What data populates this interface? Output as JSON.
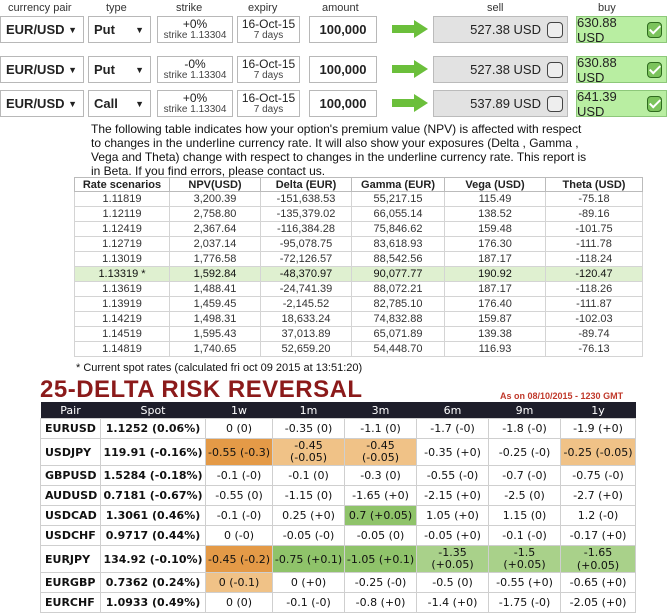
{
  "headers": {
    "pair": "currency pair",
    "type": "type",
    "strike": "strike",
    "expiry": "expiry",
    "amount": "amount",
    "sell": "sell",
    "buy": "buy"
  },
  "tickets": [
    {
      "pair": "EUR/USD",
      "type": "Put",
      "pct": "+0%",
      "strike": "strike 1.13304",
      "date": "16-Oct-15",
      "days": "7 days",
      "amount": "100,000",
      "sell": "527.38 USD",
      "buy": "630.88 USD"
    },
    {
      "pair": "EUR/USD",
      "type": "Put",
      "pct": "-0%",
      "strike": "strike 1.13304",
      "date": "16-Oct-15",
      "days": "7 days",
      "amount": "100,000",
      "sell": "527.38 USD",
      "buy": "630.88 USD"
    },
    {
      "pair": "EUR/USD",
      "type": "Call",
      "pct": "+0%",
      "strike": "strike 1.13304",
      "date": "16-Oct-15",
      "days": "7 days",
      "amount": "100,000",
      "sell": "537.89 USD",
      "buy": "641.39 USD"
    }
  ],
  "note": "The following table indicates how your option's premium value (NPV) is affected with respect to changes in the underline currency rate. It will also show your exposures (Delta , Gamma , Vega and Theta) change with respect to changes in the underline currency rate. This report is in Beta. If you find errors, please contact us.",
  "scenario_headers": [
    "Rate scenarios",
    "NPV(USD)",
    "Delta (EUR)",
    "Gamma (EUR)",
    "Vega (USD)",
    "Theta (USD)"
  ],
  "scenarios": [
    [
      "1.11819",
      "3,200.39",
      "-151,638.53",
      "55,217.15",
      "115.49",
      "-75.18"
    ],
    [
      "1.12119",
      "2,758.80",
      "-135,379.02",
      "66,055.14",
      "138.52",
      "-89.16"
    ],
    [
      "1.12419",
      "2,367.64",
      "-116,384.28",
      "75,846.62",
      "159.48",
      "-101.75"
    ],
    [
      "1.12719",
      "2,037.14",
      "-95,078.75",
      "83,618.93",
      "176.30",
      "-111.78"
    ],
    [
      "1.13019",
      "1,776.58",
      "-72,126.57",
      "88,542.56",
      "187.17",
      "-118.24"
    ],
    [
      "1.13319 *",
      "1,592.84",
      "-48,370.97",
      "90,077.77",
      "190.92",
      "-120.47"
    ],
    [
      "1.13619",
      "1,488.41",
      "-24,741.39",
      "88,072.21",
      "187.17",
      "-118.26"
    ],
    [
      "1.13919",
      "1,459.45",
      "-2,145.52",
      "82,785.10",
      "176.40",
      "-111.87"
    ],
    [
      "1.14219",
      "1,498.31",
      "18,633.24",
      "74,832.88",
      "159.87",
      "-102.03"
    ],
    [
      "1.14519",
      "1,595.43",
      "37,013.89",
      "65,071.89",
      "139.38",
      "-89.74"
    ],
    [
      "1.14819",
      "1,740.65",
      "52,659.20",
      "54,448.70",
      "116.93",
      "-76.13"
    ]
  ],
  "footnote": "* Current spot rates (calculated fri oct 09 2015 at 13:51:20)",
  "rr_title": "25-DELTA RISK REVERSAL",
  "rr_date": "As on 08/10/2015 - 1230 GMT",
  "rr_headers": [
    "Pair",
    "Spot",
    "1w",
    "1m",
    "3m",
    "6m",
    "9m",
    "1y"
  ],
  "rr_rows": [
    {
      "pair": "EURUSD",
      "spot": "1.1252 (0.06%)",
      "vals": [
        "0 (0)",
        "-0.35 (0)",
        "-1.1 (0)",
        "-1.7 (-0)",
        "-1.8 (-0)",
        "-1.9 (+0)"
      ],
      "colors": [
        "",
        "",
        "",
        "",
        "",
        ""
      ]
    },
    {
      "pair": "USDJPY",
      "spot": "119.91 (-0.16%)",
      "vals": [
        "-0.55 (-0.3)",
        "-0.45\n(-0.05)",
        "-0.45\n(-0.05)",
        "-0.35 (+0)",
        "-0.25 (-0)",
        "-0.25 (-0.05)"
      ],
      "colors": [
        "o",
        "lo",
        "lo",
        "",
        "",
        "lo"
      ]
    },
    {
      "pair": "GBPUSD",
      "spot": "1.5284 (-0.18%)",
      "vals": [
        "-0.1 (-0)",
        "-0.1 (0)",
        "-0.3 (0)",
        "-0.55 (-0)",
        "-0.7 (-0)",
        "-0.75 (-0)"
      ],
      "colors": [
        "",
        "",
        "",
        "",
        "",
        ""
      ]
    },
    {
      "pair": "AUDUSD",
      "spot": "0.7181 (-0.67%)",
      "vals": [
        "-0.55 (0)",
        "-1.15 (0)",
        "-1.65 (+0)",
        "-2.15 (+0)",
        "-2.5 (0)",
        "-2.7 (+0)"
      ],
      "colors": [
        "",
        "",
        "",
        "",
        "",
        ""
      ]
    },
    {
      "pair": "USDCAD",
      "spot": "1.3061 (0.46%)",
      "vals": [
        "-0.1 (-0)",
        "0.25 (+0)",
        "0.7 (+0.05)",
        "1.05 (+0)",
        "1.15 (0)",
        "1.2 (-0)"
      ],
      "colors": [
        "",
        "",
        "g",
        "",
        "",
        ""
      ]
    },
    {
      "pair": "USDCHF",
      "spot": "0.9717 (0.44%)",
      "vals": [
        "0 (-0)",
        "-0.05 (-0)",
        "-0.05 (0)",
        "-0.05 (+0)",
        "-0.1 (-0)",
        "-0.17 (+0)"
      ],
      "colors": [
        "",
        "",
        "",
        "",
        "",
        ""
      ]
    },
    {
      "pair": "EURJPY",
      "spot": "134.92 (-0.10%)",
      "vals": [
        "-0.45 (-0.2)",
        "-0.75 (+0.1)",
        "-1.05 (+0.1)",
        "-1.35\n(+0.05)",
        "-1.5\n(+0.05)",
        "-1.65 (+0.05)"
      ],
      "colors": [
        "o",
        "g",
        "g",
        "lg",
        "lg",
        "lg"
      ]
    },
    {
      "pair": "EURGBP",
      "spot": "0.7362 (0.24%)",
      "vals": [
        "0 (-0.1)",
        "0 (+0)",
        "-0.25 (-0)",
        "-0.5 (0)",
        "-0.55 (+0)",
        "-0.65 (+0)"
      ],
      "colors": [
        "lo",
        "",
        "",
        "",
        "",
        ""
      ]
    },
    {
      "pair": "EURCHF",
      "spot": "1.0933 (0.49%)",
      "vals": [
        "0 (0)",
        "-0.1 (-0)",
        "-0.8 (+0)",
        "-1.4 (+0)",
        "-1.75 (-0)",
        "-2.05 (+0)"
      ],
      "colors": [
        "",
        "",
        "",
        "",
        "",
        ""
      ]
    }
  ]
}
